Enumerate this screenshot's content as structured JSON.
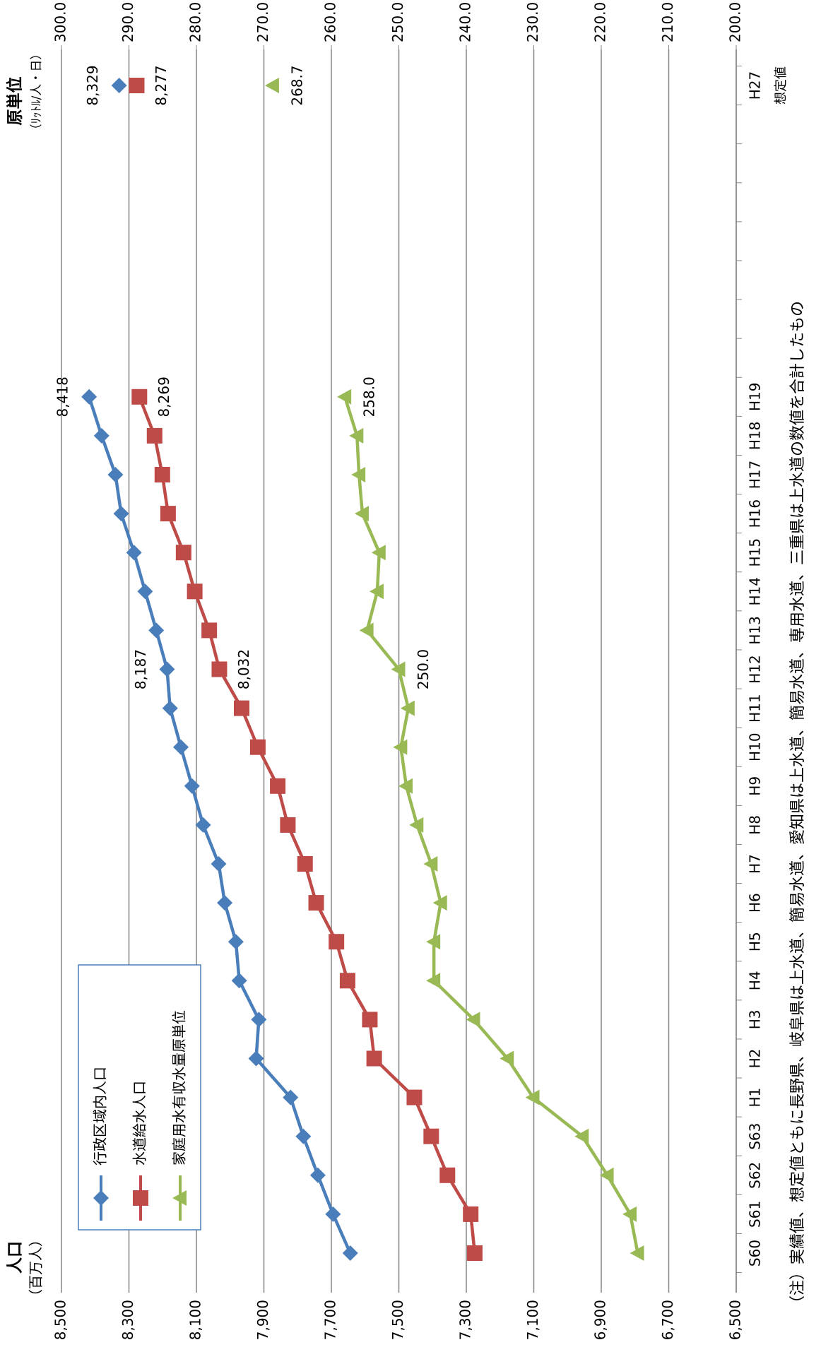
{
  "chart_data": {
    "type": "line",
    "ylabel": "人口",
    "ylabel_sub": "（百万人）",
    "y2label": "原単位",
    "y2label_sub": "（ﾘｯﾄﾙ/人・日）",
    "categories": [
      "S60",
      "S61",
      "S62",
      "S63",
      "H1",
      "H2",
      "H3",
      "H4",
      "H5",
      "H6",
      "H7",
      "H8",
      "H9",
      "H10",
      "H11",
      "H12",
      "H13",
      "H14",
      "H15",
      "H16",
      "H17",
      "H18",
      "H19",
      null,
      null,
      null,
      null,
      null,
      null,
      null,
      "H27"
    ],
    "category_note": "想定値",
    "series": [
      {
        "name": "行政区域内人口",
        "color": "#4a7ebb",
        "marker": "diamond",
        "values": [
          7644,
          7695,
          7740,
          7783,
          7821,
          7923,
          7915,
          7973,
          7983,
          8016,
          8034,
          8080,
          8113,
          8146,
          8178,
          8187,
          8219,
          8252,
          8285,
          8323,
          8340,
          8381,
          8418,
          null,
          null,
          null,
          null,
          null,
          null,
          null,
          8329
        ],
        "value_labels": [
          null,
          null,
          null,
          null,
          null,
          null,
          null,
          null,
          null,
          null,
          null,
          null,
          null,
          null,
          null,
          "8,187",
          null,
          null,
          null,
          null,
          null,
          null,
          "8,418",
          null,
          null,
          null,
          null,
          null,
          null,
          null,
          "8,329"
        ]
      },
      {
        "name": "水道給水人口",
        "color": "#be4b48",
        "marker": "square",
        "values": [
          7275,
          7287,
          7356,
          7404,
          7454,
          7573,
          7586,
          7652,
          7685,
          7745,
          7778,
          7829,
          7859,
          7918,
          7966,
          8032,
          8062,
          8105,
          8138,
          8184,
          8201,
          8224,
          8269,
          null,
          null,
          null,
          null,
          null,
          null,
          null,
          8277
        ],
        "value_labels": [
          null,
          null,
          null,
          null,
          null,
          null,
          null,
          null,
          null,
          null,
          null,
          null,
          null,
          null,
          null,
          "8,032",
          null,
          null,
          null,
          null,
          null,
          null,
          "8,269",
          null,
          null,
          null,
          null,
          null,
          null,
          null,
          "8,277"
        ]
      },
      {
        "name": "家庭用水有収水量原単位",
        "color": "#98b954",
        "marker": "triangle",
        "axis": "y2",
        "values": [
          214.6,
          215.7,
          219.1,
          222.8,
          230.1,
          233.9,
          238.9,
          244.8,
          244.8,
          243.8,
          245.2,
          247.3,
          248.9,
          249.7,
          248.6,
          250.0,
          254.7,
          253.2,
          252.9,
          255.4,
          255.9,
          256.2,
          258.0,
          null,
          null,
          null,
          null,
          null,
          null,
          null,
          268.7
        ],
        "value_labels": [
          null,
          null,
          null,
          null,
          null,
          null,
          null,
          null,
          null,
          null,
          null,
          null,
          null,
          null,
          null,
          "250.0",
          null,
          null,
          null,
          null,
          null,
          null,
          "258.0",
          null,
          null,
          null,
          null,
          null,
          null,
          null,
          "268.7"
        ]
      }
    ],
    "ylim": [
      6500,
      8500
    ],
    "yticks": [
      {
        "value": 6500,
        "label": "6,500"
      },
      {
        "value": 6700,
        "label": "6,700"
      },
      {
        "value": 6900,
        "label": "6,900"
      },
      {
        "value": 7100,
        "label": "7,100"
      },
      {
        "value": 7300,
        "label": "7,300"
      },
      {
        "value": 7500,
        "label": "7,500"
      },
      {
        "value": 7700,
        "label": "7,700"
      },
      {
        "value": 7900,
        "label": "7,900"
      },
      {
        "value": 8100,
        "label": "8,100"
      },
      {
        "value": 8300,
        "label": "8,300"
      },
      {
        "value": 8500,
        "label": "8,500"
      }
    ],
    "y2lim": [
      200,
      300
    ],
    "y2ticks": [
      {
        "value": 200,
        "label": "200.0"
      },
      {
        "value": 210,
        "label": "210.0"
      },
      {
        "value": 220,
        "label": "220.0"
      },
      {
        "value": 230,
        "label": "230.0"
      },
      {
        "value": 240,
        "label": "240.0"
      },
      {
        "value": 250,
        "label": "250.0"
      },
      {
        "value": 260,
        "label": "260.0"
      },
      {
        "value": 270,
        "label": "270.0"
      },
      {
        "value": 280,
        "label": "280.0"
      },
      {
        "value": 290,
        "label": "290.0"
      },
      {
        "value": 300,
        "label": "300.0"
      }
    ],
    "grid": true,
    "legend": "upper left",
    "note": "（注）実績値、想定値ともに長野県、岐阜県は上水道、簡易水道、愛知県は上水道、簡易水道、専用水道、三重県は上水道の数値を合計したもの"
  }
}
